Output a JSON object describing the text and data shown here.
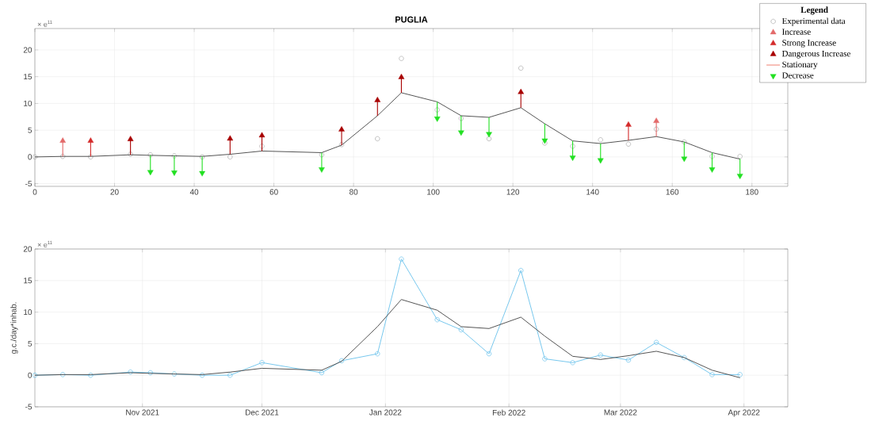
{
  "chart_data": [
    {
      "type": "scatter",
      "title": "PUGLIA",
      "annotations": [
        "× e$^{11}$"
      ],
      "legend_title": "Legend",
      "legend": "top right",
      "grid": true,
      "xlim": [
        0,
        189
      ],
      "xticks": [
        0,
        20,
        40,
        60,
        80,
        100,
        120,
        140,
        160,
        180
      ],
      "ylim": [
        -5.5,
        24
      ],
      "yticks": [
        -5,
        0,
        5,
        10,
        15,
        20
      ],
      "series": [
        {
          "name": "Experimental data",
          "type": "scatter",
          "marker": "circle",
          "color": "#b4b4b4",
          "x": [
            0,
            7,
            14,
            24,
            29,
            35,
            42,
            49,
            57,
            72,
            77,
            86,
            92,
            101,
            107,
            114,
            122,
            128,
            135,
            142,
            149,
            156,
            163,
            170,
            177
          ],
          "values": [
            0,
            0.1,
            0,
            0.5,
            0.4,
            0.2,
            0,
            0,
            2.0,
            0.4,
            2.3,
            3.4,
            18.4,
            8.8,
            7.2,
            3.4,
            16.6,
            2.6,
            2.0,
            3.2,
            2.4,
            5.2,
            2.8,
            0.1,
            0.1
          ]
        },
        {
          "type": "line",
          "color": "#555555",
          "x": [
            0,
            7,
            14,
            24,
            29,
            35,
            42,
            49,
            57,
            72,
            77,
            86,
            92,
            101,
            107,
            114,
            122,
            128,
            135,
            142,
            149,
            156,
            163,
            170,
            177
          ],
          "values": [
            0,
            0.1,
            0.1,
            0.4,
            0.3,
            0.2,
            0.1,
            0.5,
            1.1,
            0.8,
            2.2,
            7.7,
            12.0,
            10.3,
            7.7,
            7.4,
            9.2,
            6.2,
            3.0,
            2.5,
            3.1,
            3.8,
            2.8,
            0.8,
            -0.4
          ]
        },
        {
          "name": "Increase",
          "type": "scatter",
          "marker": "triangle",
          "color": "#e36a6a",
          "x": [
            7,
            156
          ],
          "values": [
            3.0,
            6.7
          ],
          "errors": [
            [
              0.1,
              3.0
            ],
            [
              3.8,
              6.7
            ]
          ]
        },
        {
          "name": "Strong Increase",
          "type": "scatter",
          "marker": "triangle",
          "color": "#d42a2a",
          "x": [
            14,
            149
          ],
          "values": [
            3.0,
            6.0
          ],
          "errors": [
            [
              0.1,
              3.0
            ],
            [
              3.1,
              6.0
            ]
          ]
        },
        {
          "name": "Dangerous Increase",
          "type": "scatter",
          "marker": "triangle",
          "color": "#a80000",
          "x": [
            24,
            49,
            57,
            77,
            86,
            92,
            122
          ],
          "values": [
            3.3,
            3.4,
            4.0,
            5.1,
            10.6,
            14.9,
            12.1
          ],
          "errors": [
            [
              0.4,
              3.3
            ],
            [
              0.5,
              3.4
            ],
            [
              1.1,
              4.0
            ],
            [
              2.2,
              5.1
            ],
            [
              7.7,
              10.6
            ],
            [
              12.0,
              14.9
            ],
            [
              9.2,
              12.1
            ]
          ]
        },
        {
          "name": "Stationary",
          "type": "line",
          "color": "#f08070"
        },
        {
          "name": "Decrease",
          "type": "scatter",
          "marker": "triangle",
          "color": "#22e022",
          "x": [
            29,
            35,
            42,
            72,
            101,
            107,
            114,
            128,
            135,
            142,
            163,
            170,
            177
          ],
          "values": [
            -2.8,
            -2.9,
            -3.0,
            -2.3,
            7.2,
            4.6,
            4.3,
            3.1,
            -0.1,
            -0.6,
            -0.3,
            -2.3,
            -3.5
          ],
          "errors": [
            [
              -2.8,
              0.3
            ],
            [
              -2.9,
              0.2
            ],
            [
              -3.0,
              0.1
            ],
            [
              -2.3,
              0.8
            ],
            [
              7.2,
              10.3
            ],
            [
              4.6,
              7.7
            ],
            [
              4.3,
              7.4
            ],
            [
              3.1,
              6.2
            ],
            [
              -0.1,
              3.0
            ],
            [
              -0.6,
              2.5
            ],
            [
              -0.3,
              2.8
            ],
            [
              -2.3,
              0.8
            ],
            [
              -3.5,
              -0.4
            ]
          ]
        }
      ]
    },
    {
      "type": "line",
      "ylabel": "g.c./day*inhab.",
      "annotations": [
        "× e$^{11}$"
      ],
      "grid": true,
      "xlim": [
        "2021-10-05",
        "2022-04-12"
      ],
      "xticks": [
        {
          "value": "2021-11-01",
          "label": "Nov 2021"
        },
        {
          "value": "2021-12-01",
          "label": "Dec 2021"
        },
        {
          "value": "2022-01-01",
          "label": "Jan 2022"
        },
        {
          "value": "2022-02-01",
          "label": "Feb 2022"
        },
        {
          "value": "2022-03-01",
          "label": "Mar 2022"
        },
        {
          "value": "2022-04-01",
          "label": "Apr 2022"
        }
      ],
      "ylim": [
        -5,
        20
      ],
      "yticks": [
        -5,
        0,
        5,
        10,
        15,
        20
      ],
      "x": [
        "2021-10-05",
        "2021-10-12",
        "2021-10-19",
        "2021-10-29",
        "2021-11-03",
        "2021-11-09",
        "2021-11-16",
        "2021-11-23",
        "2021-12-01",
        "2021-12-16",
        "2021-12-21",
        "2021-12-30",
        "2022-01-05",
        "2022-01-14",
        "2022-01-20",
        "2022-01-27",
        "2022-02-04",
        "2022-02-10",
        "2022-02-17",
        "2022-02-24",
        "2022-03-03",
        "2022-03-10",
        "2022-03-17",
        "2022-03-24",
        "2022-03-31"
      ],
      "series": [
        {
          "marker": "circle",
          "color": "#78c8ee",
          "values": [
            0,
            0.1,
            0,
            0.5,
            0.4,
            0.2,
            0,
            0,
            2.0,
            0.4,
            2.3,
            3.4,
            18.4,
            8.8,
            7.2,
            3.4,
            16.6,
            2.6,
            2.0,
            3.2,
            2.4,
            5.2,
            2.8,
            0.1,
            0.1
          ]
        },
        {
          "marker": "none",
          "color": "#555555",
          "values": [
            0,
            0.1,
            0.1,
            0.4,
            0.3,
            0.2,
            0.1,
            0.5,
            1.1,
            0.8,
            2.2,
            7.7,
            12.0,
            10.3,
            7.7,
            7.4,
            9.2,
            6.2,
            3.0,
            2.5,
            3.1,
            3.8,
            2.8,
            0.8,
            -0.4
          ]
        }
      ]
    }
  ]
}
